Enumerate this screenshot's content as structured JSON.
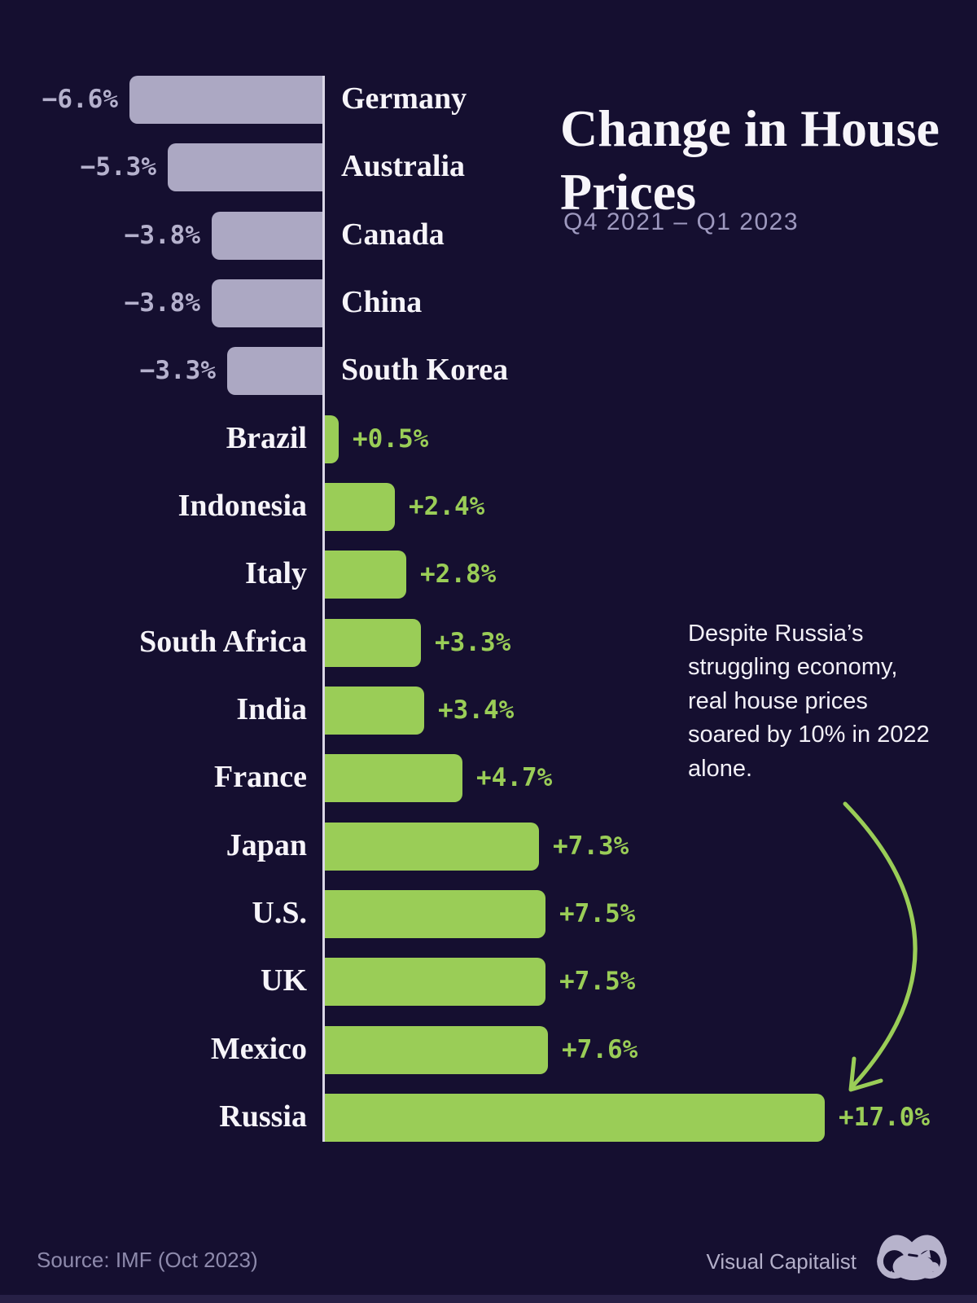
{
  "header": {
    "title": "Change in House Prices",
    "subtitle": "Q4 2021 – Q1 2023"
  },
  "annotation": {
    "text": "Despite Russia’s struggling economy, real house prices soared by 10% in 2022 alone."
  },
  "footer": {
    "source": "Source: IMF (Oct 2023)",
    "brand": "Visual Capitalist"
  },
  "chart_data": {
    "type": "bar",
    "orientation": "horizontal",
    "title": "Change in House Prices",
    "subtitle": "Q4 2021 – Q1 2023",
    "value_unit": "%",
    "categories": [
      "Germany",
      "Australia",
      "Canada",
      "China",
      "South Korea",
      "Brazil",
      "Indonesia",
      "Italy",
      "South Africa",
      "India",
      "France",
      "Japan",
      "U.S.",
      "UK",
      "Mexico",
      "Russia"
    ],
    "values": [
      -6.6,
      -5.3,
      -3.8,
      -3.8,
      -3.3,
      0.5,
      2.4,
      2.8,
      3.3,
      3.4,
      4.7,
      7.3,
      7.5,
      7.5,
      7.6,
      17.0
    ],
    "value_labels": [
      "−6.6%",
      "−5.3%",
      "−3.8%",
      "−3.8%",
      "−3.3%",
      "+0.5%",
      "+2.4%",
      "+2.8%",
      "+3.3%",
      "+3.4%",
      "+4.7%",
      "+7.3%",
      "+7.5%",
      "+7.5%",
      "+7.6%",
      "+17.0%"
    ],
    "axis_range": [
      -7,
      17
    ],
    "grid": "off",
    "legend": "none",
    "colors": {
      "background": "#150f30",
      "positive_bar": "#9acd57",
      "negative_bar": "#aca8c3",
      "positive_value_text": "#9acd57",
      "negative_value_text": "#b5b1cd",
      "country_text": "#f6f4f9",
      "axis_line": "#d9d6e6"
    }
  }
}
